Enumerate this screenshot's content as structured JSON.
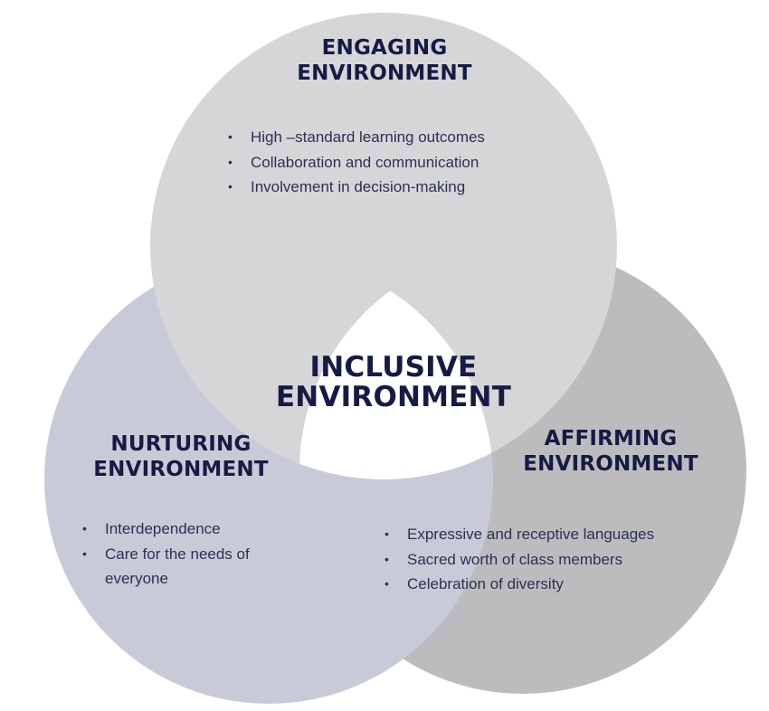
{
  "colors": {
    "engaging": "#d6d6d9",
    "nurturing": "#c8cbd7",
    "affirming": "#bcbcbe",
    "center": "#ffffff",
    "title_text": "#161b45",
    "body_text": "#2b3152"
  },
  "circles": {
    "engaging": {
      "title_line1": "ENGAGING",
      "title_line2": "ENVIRONMENT",
      "items": [
        "High –standard learning outcomes",
        "Collaboration and communication",
        "Involvement in decision-making"
      ]
    },
    "nurturing": {
      "title_line1": "NURTURING",
      "title_line2": "ENVIRONMENT",
      "items": [
        "Interdependence",
        "Care for the needs of everyone"
      ]
    },
    "affirming": {
      "title_line1": "AFFIRMING",
      "title_line2": "ENVIRONMENT",
      "items": [
        "Expressive and receptive languages",
        "Sacred worth of class members",
        "Celebration of diversity"
      ]
    }
  },
  "center": {
    "title_line1": "INCLUSIVE",
    "title_line2": "ENVIRONMENT"
  }
}
